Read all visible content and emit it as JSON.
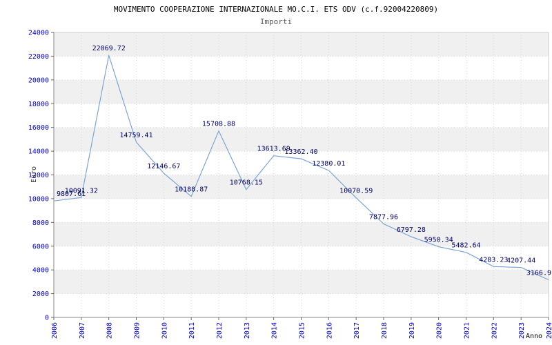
{
  "chart_data": {
    "type": "line",
    "title": "MOVIMENTO COOPERAZIONE INTERNAZIONALE MO.C.I. ETS ODV (c.f.92004220809)",
    "subtitle": "Importi",
    "xlabel": "Anno",
    "ylabel": "Euro",
    "categories": [
      "2006",
      "2007",
      "2008",
      "2009",
      "2010",
      "2011",
      "2012",
      "2013",
      "2014",
      "2015",
      "2016",
      "2017",
      "2018",
      "2019",
      "2020",
      "2021",
      "2022",
      "2023",
      "2024"
    ],
    "values": [
      9807.61,
      10091.32,
      22069.72,
      14759.41,
      12146.67,
      10188.87,
      15708.88,
      10768.15,
      13613.69,
      13362.4,
      12380.01,
      10070.59,
      7877.96,
      6797.28,
      5950.34,
      5482.64,
      4283.23,
      4207.44,
      3166.9
    ],
    "point_labels": [
      "9807.61",
      "10091.32",
      "22069.72",
      "14759.41",
      "12146.67",
      "10188.87",
      "15708.88",
      "10768.15",
      "13613.69",
      "13362.40",
      "12380.01",
      "10070.59",
      "7877.96",
      "6797.28",
      "5950.34",
      "5482.64",
      "4283.23",
      "4207.44",
      "3166.9"
    ],
    "yticks": [
      "0",
      "2000",
      "4000",
      "6000",
      "8000",
      "10000",
      "12000",
      "14000",
      "16000",
      "18000",
      "20000",
      "22000",
      "24000"
    ],
    "ylim": [
      0,
      24000
    ],
    "ytick_step": 2000,
    "grid": true,
    "legend": "none",
    "colors": {
      "line": "#7BA4D9",
      "axis_label": "#0000CC",
      "value_label": "#000066",
      "band": "#F0F0F0",
      "grid": "#D8D8D8",
      "axis": "#888888",
      "border": "#CCCCCC",
      "tick": "#666666",
      "title": "#000000",
      "subtitle": "#555555",
      "axis_title": "#333333"
    }
  }
}
